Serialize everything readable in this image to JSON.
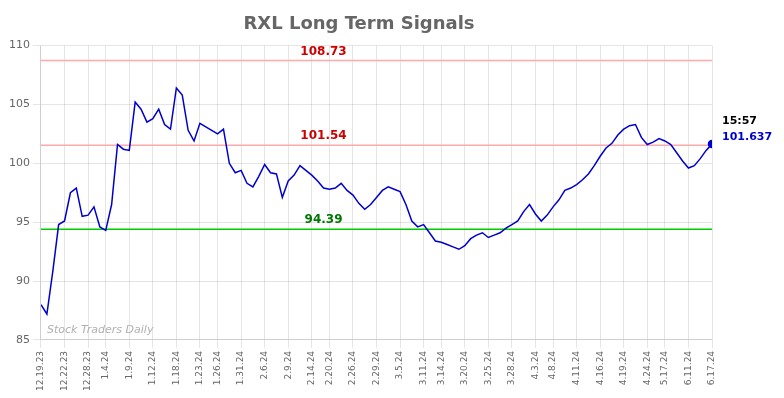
{
  "chart_data": {
    "type": "line",
    "title": "RXL Long Term Signals",
    "categories": [
      "12.19.23",
      null,
      null,
      null,
      "12.22.23",
      null,
      null,
      null,
      "12.28.23",
      null,
      null,
      "1.4.24",
      null,
      null,
      null,
      "1.9.24",
      null,
      null,
      null,
      "1.12.24",
      null,
      null,
      null,
      "1.18.24",
      null,
      null,
      null,
      "1.23.24",
      null,
      null,
      "1.26.24",
      null,
      null,
      null,
      "1.31.24",
      null,
      null,
      null,
      "2.6.24",
      null,
      null,
      null,
      "2.9.24",
      null,
      null,
      null,
      "2.14.24",
      null,
      null,
      "2.20.24",
      null,
      null,
      null,
      "2.26.24",
      null,
      null,
      null,
      "2.29.24",
      null,
      null,
      null,
      "3.5.24",
      null,
      null,
      null,
      "3.11.24",
      null,
      null,
      "3.14.24",
      null,
      null,
      null,
      "3.20.24",
      null,
      null,
      null,
      "3.25.24",
      null,
      null,
      null,
      "3.28.24",
      null,
      null,
      null,
      "4.3.24",
      null,
      null,
      "4.8.24",
      null,
      null,
      null,
      "4.11.24",
      null,
      null,
      null,
      "4.16.24",
      null,
      null,
      null,
      "4.19.24",
      null,
      null,
      null,
      "4.24.24",
      null,
      null,
      "5.17.24",
      null,
      null,
      null,
      "6.11.24",
      null,
      null,
      null,
      "6.17.24"
    ],
    "values": [
      88.0,
      87.2,
      90.8,
      94.8,
      95.1,
      97.5,
      97.9,
      95.5,
      95.6,
      96.3,
      94.6,
      94.3,
      96.5,
      101.6,
      101.2,
      101.1,
      105.2,
      104.6,
      103.5,
      103.8,
      104.6,
      103.3,
      102.9,
      106.4,
      105.8,
      102.8,
      101.9,
      103.4,
      103.1,
      102.8,
      102.5,
      102.9,
      100.0,
      99.2,
      99.4,
      98.3,
      98.0,
      98.9,
      99.9,
      99.2,
      99.1,
      97.1,
      98.5,
      99.0,
      99.8,
      99.4,
      99.0,
      98.5,
      97.9,
      97.8,
      97.9,
      98.3,
      97.7,
      97.3,
      96.6,
      96.1,
      96.5,
      97.1,
      97.7,
      98.0,
      97.8,
      97.6,
      96.5,
      95.1,
      94.6,
      94.8,
      94.1,
      93.4,
      93.3,
      93.1,
      92.9,
      92.7,
      93.0,
      93.6,
      93.9,
      94.1,
      93.7,
      93.9,
      94.1,
      94.5,
      94.8,
      95.1,
      95.9,
      96.5,
      95.7,
      95.1,
      95.6,
      96.3,
      96.9,
      97.7,
      97.9,
      98.2,
      98.6,
      99.1,
      99.8,
      100.6,
      101.3,
      101.7,
      102.4,
      102.9,
      103.2,
      103.3,
      102.2,
      101.6,
      101.8,
      102.1,
      101.9,
      101.6,
      100.9,
      100.2,
      99.6,
      99.8,
      100.4,
      101.1,
      101.637
    ],
    "color": "#0000cc",
    "ylim": [
      85,
      110
    ],
    "yticks": [
      85,
      90,
      95,
      100,
      105,
      110
    ],
    "grid": true,
    "hlines": [
      {
        "value": 108.73,
        "color": "#ffaaaa",
        "label": "108.73",
        "label_color": "#cc0000"
      },
      {
        "value": 101.54,
        "color": "#ffaaaa",
        "label": "101.54",
        "label_color": "#cc0000"
      },
      {
        "value": 94.39,
        "color": "#00cc00",
        "label": "94.39",
        "label_color": "#007700"
      }
    ],
    "end_annotation": {
      "time_text": "15:57",
      "time_color": "#000000",
      "price_text": "101.637",
      "price_color": "#0000cc"
    },
    "watermark": {
      "text": "Stock Traders Daily",
      "color": "#b0b0b0"
    }
  }
}
